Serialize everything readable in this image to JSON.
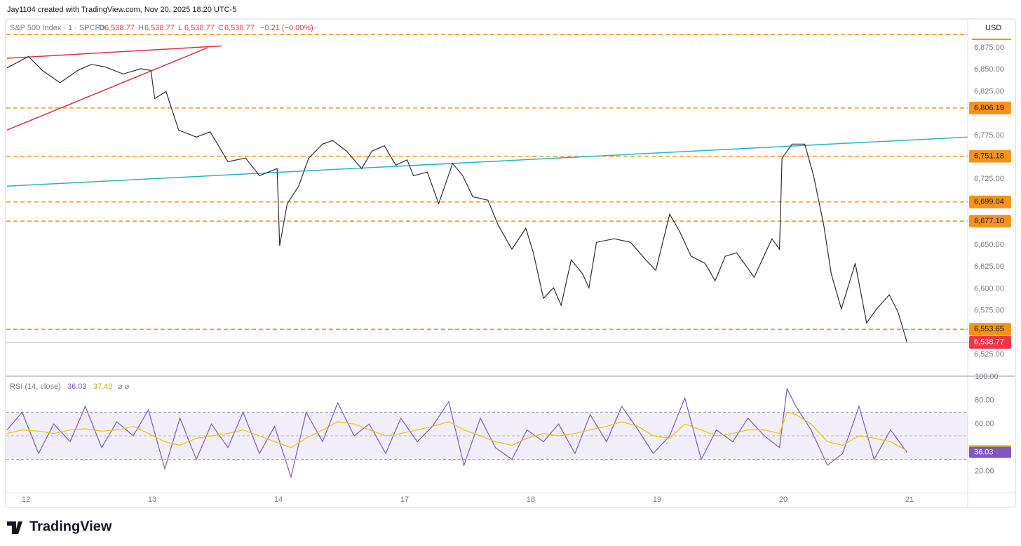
{
  "header": {
    "credit": "Jay1104 created with TradingView.com, Nov 20, 2025 18:20 UTC-5"
  },
  "footer": {
    "logo": "TradingView"
  },
  "chart_data": [
    {
      "type": "line",
      "title": "S&P 500 Index · 1 · SPCFD",
      "ohlc": [
        {
          "key": "O",
          "value": "6,538.77"
        },
        {
          "key": "H",
          "value": "6,538.77"
        },
        {
          "key": "L",
          "value": "6,538.77"
        },
        {
          "key": "C",
          "value": "6,538.77"
        }
      ],
      "change": "−0.21 (−0.00%)",
      "currency": "USD",
      "color": "#2a2e39",
      "x": [
        -0.15,
        0.02,
        0.13,
        0.27,
        0.41,
        0.52,
        0.63,
        0.77,
        0.91,
        0.99,
        1.02,
        1.11,
        1.21,
        1.35,
        1.46,
        1.6,
        1.74,
        1.85,
        1.99,
        2.01,
        2.07,
        2.16,
        2.24,
        2.35,
        2.43,
        2.54,
        2.66,
        2.74,
        2.84,
        2.93,
        3.02,
        3.07,
        3.18,
        3.27,
        3.38,
        3.46,
        3.54,
        3.66,
        3.74,
        3.85,
        3.96,
        4.02,
        4.1,
        4.18,
        4.24,
        4.32,
        4.41,
        4.46,
        4.52,
        4.66,
        4.79,
        4.91,
        4.99,
        5.1,
        5.18,
        5.27,
        5.38,
        5.46,
        5.54,
        5.63,
        5.77,
        5.82,
        5.91,
        5.97,
        5.99,
        6.07,
        6.17,
        6.24,
        6.32,
        6.38,
        6.46,
        6.57,
        6.66,
        6.74,
        6.84,
        6.91,
        6.98
      ],
      "values": [
        6852,
        6865,
        6849,
        6835,
        6849,
        6856,
        6853,
        6845,
        6851,
        6849,
        6817,
        6825,
        6781,
        6773,
        6779,
        6745,
        6749,
        6729,
        6737,
        6649,
        6697,
        6717,
        6749,
        6765,
        6769,
        6757,
        6737,
        6757,
        6763,
        6741,
        6747,
        6729,
        6733,
        6697,
        6743,
        6729,
        6705,
        6701,
        6673,
        6645,
        6669,
        6641,
        6589,
        6601,
        6581,
        6633,
        6617,
        6601,
        6653,
        6657,
        6653,
        6633,
        6621,
        6685,
        6665,
        6637,
        6629,
        6609,
        6637,
        6641,
        6613,
        6629,
        6657,
        6645,
        6749,
        6765,
        6765,
        6729,
        6673,
        6617,
        6577,
        6629,
        6561,
        6577,
        6593,
        6573,
        6538.77
      ],
      "last_label": "6,538.77",
      "last_color": "#f23645",
      "xlim": [
        -0.15,
        7.46
      ],
      "xticks": [
        {
          "value": 0,
          "label": "12"
        },
        {
          "value": 1,
          "label": "13"
        },
        {
          "value": 2,
          "label": "14"
        },
        {
          "value": 3,
          "label": "17"
        },
        {
          "value": 4,
          "label": "18"
        },
        {
          "value": 5,
          "label": "19"
        },
        {
          "value": 6,
          "label": "20"
        },
        {
          "value": 7,
          "label": "21"
        }
      ],
      "ylim": [
        6501,
        6899
      ],
      "yticks": [
        {
          "value": 6875,
          "label": "6,875.00"
        },
        {
          "value": 6850,
          "label": "6,850.00"
        },
        {
          "value": 6825,
          "label": "6,825.00"
        },
        {
          "value": 6775,
          "label": "6,775.00"
        },
        {
          "value": 6725,
          "label": "6,725.00"
        },
        {
          "value": 6650,
          "label": "6,650.00"
        },
        {
          "value": 6625,
          "label": "6,625.00"
        },
        {
          "value": 6600,
          "label": "6,600.00"
        },
        {
          "value": 6575,
          "label": "6,575.00"
        },
        {
          "value": 6525,
          "label": "6,525.00"
        }
      ],
      "level_color": "#f7931a",
      "levels": [
        6890,
        {
          "value": 6806.19,
          "label": "6,806.19"
        },
        {
          "value": 6751.18,
          "label": "6,751.18"
        },
        {
          "value": 6699.04,
          "label": "6,699.04"
        },
        {
          "value": 6677.1,
          "label": "6,677.10"
        },
        {
          "value": 6553.65,
          "label": "6,553.65"
        }
      ],
      "trendlines": [
        {
          "x": [
            -0.15,
            1.55
          ],
          "y": [
            6863,
            6877
          ],
          "color": "#e0303a"
        },
        {
          "x": [
            -0.15,
            1.44
          ],
          "y": [
            6781,
            6875
          ],
          "color": "#e0303a"
        },
        {
          "x": [
            -0.15,
            7.46
          ],
          "y": [
            6717,
            6773
          ],
          "color": "#22b5c9"
        }
      ]
    },
    {
      "type": "line",
      "title": "RSI (14, close)",
      "legend_suffix": "⌀ ⌀",
      "x": [
        -0.15,
        -0.03,
        0.1,
        0.22,
        0.35,
        0.47,
        0.6,
        0.72,
        0.85,
        0.97,
        1.1,
        1.22,
        1.35,
        1.47,
        1.6,
        1.72,
        1.85,
        1.97,
        2.1,
        2.22,
        2.35,
        2.47,
        2.6,
        2.72,
        2.85,
        2.97,
        3.1,
        3.22,
        3.35,
        3.47,
        3.6,
        3.72,
        3.85,
        3.97,
        4.1,
        4.22,
        4.35,
        4.47,
        4.6,
        4.72,
        4.85,
        4.97,
        5.1,
        5.22,
        5.35,
        5.47,
        5.6,
        5.72,
        5.85,
        5.97,
        6.03,
        6.1,
        6.22,
        6.35,
        6.47,
        6.6,
        6.72,
        6.85,
        6.98
      ],
      "series": [
        {
          "color": "#7e57c2",
          "last_label": "36.03",
          "values": [
            55,
            70,
            35,
            60,
            45,
            75,
            40,
            62,
            50,
            72,
            22,
            65,
            30,
            60,
            40,
            70,
            35,
            58,
            15,
            70,
            45,
            78,
            50,
            60,
            35,
            65,
            45,
            58,
            79,
            25,
            65,
            40,
            30,
            55,
            45,
            60,
            35,
            68,
            45,
            75,
            55,
            35,
            50,
            82,
            30,
            55,
            45,
            65,
            50,
            40,
            90,
            75,
            55,
            25,
            35,
            75,
            30,
            55,
            36.03
          ]
        },
        {
          "color": "#e8c400",
          "last_label": "37.40",
          "values": [
            52,
            55,
            54,
            52,
            55,
            56,
            54,
            55,
            58,
            52,
            45,
            42,
            48,
            50,
            52,
            55,
            50,
            45,
            40,
            48,
            55,
            62,
            60,
            55,
            50,
            52,
            55,
            58,
            62,
            55,
            50,
            45,
            42,
            48,
            52,
            50,
            52,
            55,
            58,
            62,
            58,
            50,
            48,
            60,
            55,
            50,
            52,
            55,
            55,
            52,
            70,
            68,
            60,
            45,
            42,
            50,
            48,
            45,
            37.4
          ]
        }
      ],
      "ylim": [
        3,
        100
      ],
      "yticks": [
        {
          "value": 100,
          "label": "100.00"
        },
        {
          "value": 80,
          "label": "80.00"
        },
        {
          "value": 60,
          "label": "60.00"
        },
        {
          "value": 20,
          "label": "20.00"
        }
      ],
      "band": [
        30,
        70
      ],
      "midline": 50
    }
  ]
}
